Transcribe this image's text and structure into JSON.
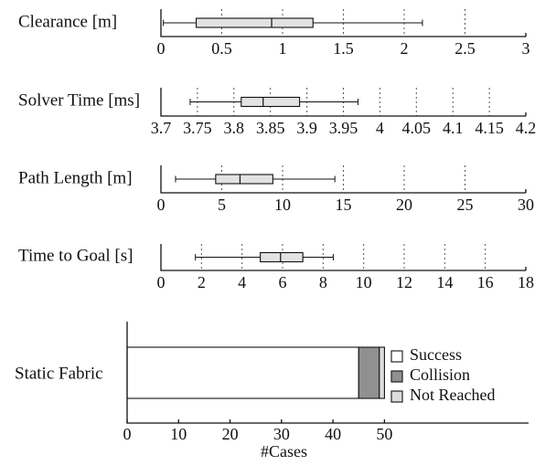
{
  "chart_data": [
    {
      "type": "box",
      "ylabel": "Clearance [m]",
      "xlim": [
        0,
        3
      ],
      "ticks": [
        0,
        0.5,
        1,
        1.5,
        2,
        2.5,
        3
      ],
      "tick_labels": [
        "0",
        "0.5",
        "1",
        "1.5",
        "2",
        "2.5",
        "3"
      ],
      "grid": "dotted vertical",
      "box": {
        "min": 0.02,
        "q1": 0.29,
        "median": 0.91,
        "q3": 1.25,
        "max": 2.15
      }
    },
    {
      "type": "box",
      "ylabel": "Solver Time [ms]",
      "xlim": [
        3.7,
        4.2
      ],
      "ticks": [
        3.7,
        3.75,
        3.8,
        3.85,
        3.9,
        3.95,
        4,
        4.05,
        4.1,
        4.15,
        4.2
      ],
      "tick_labels": [
        "3.7",
        "3.75",
        "3.8",
        "3.85",
        "3.9",
        "3.95",
        "4",
        "4.05",
        "4.1",
        "4.15",
        "4.2"
      ],
      "grid": "dotted vertical",
      "box": {
        "min": 3.74,
        "q1": 3.81,
        "median": 3.84,
        "q3": 3.89,
        "max": 3.97
      }
    },
    {
      "type": "box",
      "ylabel": "Path Length [m]",
      "xlim": [
        0,
        30
      ],
      "ticks": [
        0,
        5,
        10,
        15,
        20,
        25,
        30
      ],
      "tick_labels": [
        "0",
        "5",
        "10",
        "15",
        "20",
        "25",
        "30"
      ],
      "grid": "dotted vertical",
      "box": {
        "min": 1.2,
        "q1": 4.5,
        "median": 6.5,
        "q3": 9.2,
        "max": 14.3
      }
    },
    {
      "type": "box",
      "ylabel": "Time to Goal [s]",
      "xlim": [
        0,
        18
      ],
      "ticks": [
        0,
        2,
        4,
        6,
        8,
        10,
        12,
        14,
        16,
        18
      ],
      "tick_labels": [
        "0",
        "2",
        "4",
        "6",
        "8",
        "10",
        "12",
        "14",
        "16",
        "18"
      ],
      "grid": "dotted vertical",
      "box": {
        "min": 1.7,
        "q1": 4.9,
        "median": 5.9,
        "q3": 7.0,
        "max": 8.5
      }
    },
    {
      "type": "bar",
      "orientation": "horizontal",
      "stacked": true,
      "categories": [
        "Static Fabric"
      ],
      "xlabel": "#Cases",
      "xlim": [
        0,
        78
      ],
      "ticks": [
        0,
        10,
        20,
        30,
        40,
        50
      ],
      "tick_labels": [
        "0",
        "10",
        "20",
        "30",
        "40",
        "50"
      ],
      "legend": "right",
      "series": [
        {
          "name": "Success",
          "values": [
            45
          ],
          "color": "#ffffff"
        },
        {
          "name": "Collision",
          "values": [
            4
          ],
          "color": "#909090"
        },
        {
          "name": "Not Reached",
          "values": [
            1
          ],
          "color": "#dcdcdc"
        }
      ]
    }
  ]
}
